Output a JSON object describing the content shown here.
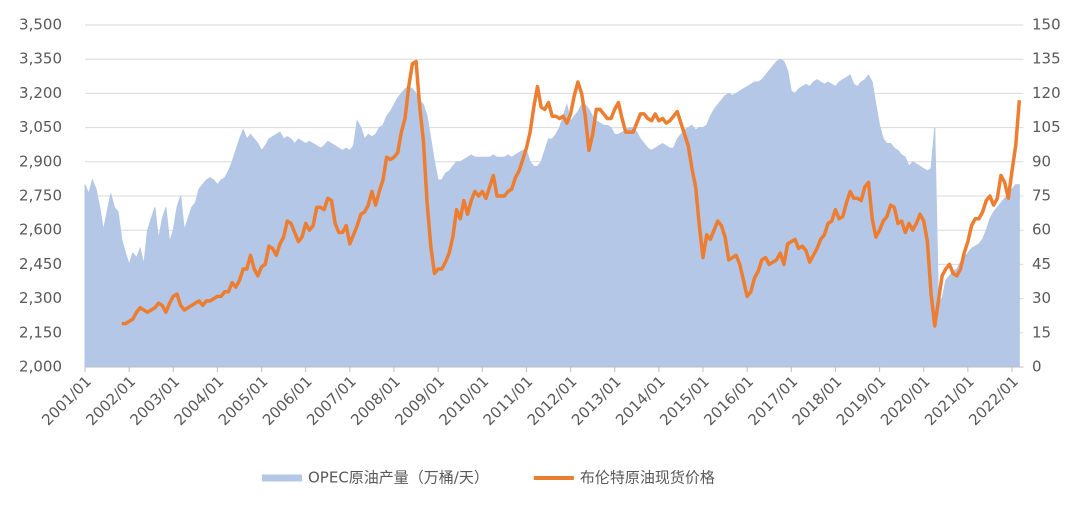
{
  "chart_data": {
    "type": "area",
    "x": [
      "2001/01",
      "2001/02",
      "2001/03",
      "2001/04",
      "2001/05",
      "2001/06",
      "2001/07",
      "2001/08",
      "2001/09",
      "2001/10",
      "2001/11",
      "2001/12",
      "2002/01",
      "2002/02",
      "2002/03",
      "2002/04",
      "2002/05",
      "2002/06",
      "2002/07",
      "2002/08",
      "2002/09",
      "2002/10",
      "2002/11",
      "2002/12",
      "2003/01",
      "2003/02",
      "2003/03",
      "2003/04",
      "2003/05",
      "2003/06",
      "2003/07",
      "2003/08",
      "2003/09",
      "2003/10",
      "2003/11",
      "2003/12",
      "2004/01",
      "2004/02",
      "2004/03",
      "2004/04",
      "2004/05",
      "2004/06",
      "2004/07",
      "2004/08",
      "2004/09",
      "2004/10",
      "2004/11",
      "2004/12",
      "2005/01",
      "2005/02",
      "2005/03",
      "2005/04",
      "2005/05",
      "2005/06",
      "2005/07",
      "2005/08",
      "2005/09",
      "2005/10",
      "2005/11",
      "2005/12",
      "2006/01",
      "2006/02",
      "2006/03",
      "2006/04",
      "2006/05",
      "2006/06",
      "2006/07",
      "2006/08",
      "2006/09",
      "2006/10",
      "2006/11",
      "2006/12",
      "2007/01",
      "2007/02",
      "2007/03",
      "2007/04",
      "2007/05",
      "2007/06",
      "2007/07",
      "2007/08",
      "2007/09",
      "2007/10",
      "2007/11",
      "2007/12",
      "2008/01",
      "2008/02",
      "2008/03",
      "2008/04",
      "2008/05",
      "2008/06",
      "2008/07",
      "2008/08",
      "2008/09",
      "2008/10",
      "2008/11",
      "2008/12",
      "2009/01",
      "2009/02",
      "2009/03",
      "2009/04",
      "2009/05",
      "2009/06",
      "2009/07",
      "2009/08",
      "2009/09",
      "2009/10",
      "2009/11",
      "2009/12",
      "2010/01",
      "2010/02",
      "2010/03",
      "2010/04",
      "2010/05",
      "2010/06",
      "2010/07",
      "2010/08",
      "2010/09",
      "2010/10",
      "2010/11",
      "2010/12",
      "2011/01",
      "2011/02",
      "2011/03",
      "2011/04",
      "2011/05",
      "2011/06",
      "2011/07",
      "2011/08",
      "2011/09",
      "2011/10",
      "2011/11",
      "2011/12",
      "2012/01",
      "2012/02",
      "2012/03",
      "2012/04",
      "2012/05",
      "2012/06",
      "2012/07",
      "2012/08",
      "2012/09",
      "2012/10",
      "2012/11",
      "2012/12",
      "2013/01",
      "2013/02",
      "2013/03",
      "2013/04",
      "2013/05",
      "2013/06",
      "2013/07",
      "2013/08",
      "2013/09",
      "2013/10",
      "2013/11",
      "2013/12",
      "2014/01",
      "2014/02",
      "2014/03",
      "2014/04",
      "2014/05",
      "2014/06",
      "2014/07",
      "2014/08",
      "2014/09",
      "2014/10",
      "2014/11",
      "2014/12",
      "2015/01",
      "2015/02",
      "2015/03",
      "2015/04",
      "2015/05",
      "2015/06",
      "2015/07",
      "2015/08",
      "2015/09",
      "2015/10",
      "2015/11",
      "2015/12",
      "2016/01",
      "2016/02",
      "2016/03",
      "2016/04",
      "2016/05",
      "2016/06",
      "2016/07",
      "2016/08",
      "2016/09",
      "2016/10",
      "2016/11",
      "2016/12",
      "2017/01",
      "2017/02",
      "2017/03",
      "2017/04",
      "2017/05",
      "2017/06",
      "2017/07",
      "2017/08",
      "2017/09",
      "2017/10",
      "2017/11",
      "2017/12",
      "2018/01",
      "2018/02",
      "2018/03",
      "2018/04",
      "2018/05",
      "2018/06",
      "2018/07",
      "2018/08",
      "2018/09",
      "2018/10",
      "2018/11",
      "2018/12",
      "2019/01",
      "2019/02",
      "2019/03",
      "2019/04",
      "2019/05",
      "2019/06",
      "2019/07",
      "2019/08",
      "2019/09",
      "2019/10",
      "2019/11",
      "2019/12",
      "2020/01",
      "2020/02",
      "2020/03",
      "2020/04",
      "2020/05",
      "2020/06",
      "2020/07",
      "2020/08",
      "2020/09",
      "2020/10",
      "2020/11",
      "2020/12",
      "2021/01",
      "2021/02",
      "2021/03",
      "2021/04",
      "2021/05",
      "2021/06",
      "2021/07",
      "2021/08",
      "2021/09",
      "2021/10",
      "2021/11",
      "2021/12",
      "2022/01",
      "2022/02",
      "2022/03"
    ],
    "xticks": [
      "2001/01",
      "2002/01",
      "2003/01",
      "2004/01",
      "2005/01",
      "2006/01",
      "2007/01",
      "2008/01",
      "2009/01",
      "2010/01",
      "2011/01",
      "2012/01",
      "2013/01",
      "2014/01",
      "2015/01",
      "2016/01",
      "2017/01",
      "2018/01",
      "2019/01",
      "2020/01",
      "2021/01",
      "2022/01"
    ],
    "series": [
      {
        "name": "OPEC原油产量（万桶/天）",
        "type": "area",
        "color": "#b4c7e7",
        "values": [
          2800,
          2760,
          2820,
          2780,
          2700,
          2600,
          2680,
          2760,
          2700,
          2680,
          2560,
          2500,
          2450,
          2500,
          2480,
          2520,
          2450,
          2600,
          2650,
          2700,
          2560,
          2650,
          2700,
          2550,
          2600,
          2700,
          2750,
          2600,
          2650,
          2700,
          2720,
          2780,
          2800,
          2820,
          2830,
          2820,
          2800,
          2820,
          2830,
          2860,
          2900,
          2950,
          3000,
          3040,
          3000,
          3020,
          3000,
          2980,
          2950,
          2970,
          3000,
          3010,
          3020,
          3030,
          3000,
          3010,
          3000,
          2980,
          3000,
          2990,
          2980,
          2990,
          2980,
          2970,
          2960,
          2970,
          2990,
          2980,
          2970,
          2960,
          2950,
          2960,
          2950,
          2970,
          3080,
          3050,
          3000,
          3020,
          3010,
          3020,
          3050,
          3060,
          3100,
          3120,
          3150,
          3180,
          3200,
          3220,
          3230,
          3220,
          3200,
          3170,
          3150,
          3100,
          3000,
          2900,
          2820,
          2820,
          2850,
          2860,
          2880,
          2900,
          2900,
          2910,
          2920,
          2930,
          2920,
          2920,
          2920,
          2920,
          2920,
          2930,
          2920,
          2920,
          2920,
          2930,
          2920,
          2930,
          2940,
          2950,
          2950,
          2900,
          2880,
          2880,
          2900,
          2950,
          3000,
          3000,
          3020,
          3050,
          3100,
          3150,
          3080,
          3100,
          3120,
          3150,
          3150,
          3130,
          3100,
          3080,
          3070,
          3060,
          3060,
          3050,
          3020,
          3020,
          3030,
          3040,
          3050,
          3050,
          3030,
          3000,
          2980,
          2960,
          2950,
          2960,
          2970,
          2980,
          2970,
          2960,
          2960,
          3000,
          3020,
          3040,
          3050,
          3060,
          3040,
          3050,
          3050,
          3060,
          3100,
          3130,
          3150,
          3170,
          3190,
          3200,
          3190,
          3200,
          3210,
          3220,
          3230,
          3240,
          3250,
          3250,
          3260,
          3280,
          3300,
          3320,
          3340,
          3350,
          3340,
          3300,
          3210,
          3200,
          3220,
          3230,
          3240,
          3230,
          3250,
          3260,
          3250,
          3240,
          3250,
          3240,
          3230,
          3250,
          3260,
          3270,
          3280,
          3240,
          3230,
          3250,
          3260,
          3280,
          3250,
          3150,
          3060,
          3000,
          2980,
          2980,
          2960,
          2950,
          2930,
          2920,
          2880,
          2900,
          2890,
          2880,
          2870,
          2860,
          2870,
          3050,
          2280,
          2300,
          2380,
          2400,
          2420,
          2430,
          2460,
          2480,
          2500,
          2520,
          2530,
          2540,
          2560,
          2600,
          2650,
          2680,
          2700,
          2720,
          2740,
          2760,
          2780,
          2800,
          2800
        ]
      },
      {
        "name": "布伦特原油现货价格",
        "type": "line",
        "axis": "y2",
        "color": "#ed7d31",
        "values": [
          null,
          null,
          null,
          null,
          null,
          null,
          null,
          null,
          null,
          null,
          19,
          19,
          20,
          21,
          24,
          26,
          25,
          24,
          25,
          26,
          28,
          27,
          24,
          28,
          31,
          32,
          27,
          25,
          26,
          27,
          28,
          29,
          27,
          29,
          29,
          30,
          31,
          31,
          33,
          33,
          37,
          35,
          38,
          43,
          43,
          49,
          43,
          40,
          44,
          45,
          53,
          52,
          49,
          54,
          57,
          64,
          63,
          59,
          55,
          57,
          63,
          60,
          62,
          70,
          70,
          69,
          74,
          73,
          63,
          59,
          59,
          62,
          54,
          58,
          62,
          67,
          68,
          71,
          77,
          71,
          77,
          82,
          92,
          91,
          92,
          94,
          103,
          109,
          123,
          133,
          134,
          114,
          99,
          72,
          53,
          41,
          43,
          43,
          46,
          50,
          57,
          69,
          65,
          73,
          67,
          73,
          77,
          75,
          77,
          74,
          79,
          84,
          75,
          75,
          75,
          77,
          78,
          83,
          86,
          91,
          96,
          103,
          114,
          123,
          114,
          113,
          116,
          110,
          110,
          109,
          110,
          107,
          111,
          119,
          125,
          120,
          110,
          95,
          102,
          113,
          113,
          111,
          109,
          109,
          113,
          116,
          109,
          103,
          103,
          103,
          107,
          111,
          111,
          109,
          108,
          111,
          108,
          109,
          107,
          108,
          110,
          112,
          107,
          102,
          97,
          87,
          79,
          62,
          48,
          58,
          56,
          60,
          64,
          62,
          57,
          47,
          48,
          49,
          45,
          38,
          31,
          33,
          39,
          42,
          47,
          48,
          45,
          46,
          47,
          50,
          45,
          54,
          55,
          56,
          52,
          53,
          51,
          46,
          49,
          52,
          56,
          58,
          63,
          64,
          69,
          65,
          66,
          72,
          77,
          74,
          74,
          73,
          79,
          81,
          65,
          57,
          60,
          64,
          66,
          71,
          70,
          63,
          64,
          59,
          63,
          60,
          63,
          67,
          64,
          55,
          32,
          18,
          29,
          40,
          43,
          45,
          41,
          40,
          43,
          50,
          55,
          62,
          65,
          65,
          68,
          73,
          75,
          71,
          74,
          84,
          81,
          74,
          86,
          97,
          117
        ]
      }
    ],
    "ylim": [
      2000,
      3500
    ],
    "yticks": [
      {
        "value": 2000,
        "label": "2,000"
      },
      {
        "value": 2150,
        "label": "2,150"
      },
      {
        "value": 2300,
        "label": "2,300"
      },
      {
        "value": 2450,
        "label": "2,450"
      },
      {
        "value": 2600,
        "label": "2,600"
      },
      {
        "value": 2750,
        "label": "2,750"
      },
      {
        "value": 2900,
        "label": "2,900"
      },
      {
        "value": 3050,
        "label": "3,050"
      },
      {
        "value": 3200,
        "label": "3,200"
      },
      {
        "value": 3350,
        "label": "3,350"
      },
      {
        "value": 3500,
        "label": "3,500"
      }
    ],
    "y2lim": [
      0,
      150
    ],
    "y2ticks": [
      0,
      15,
      30,
      45,
      60,
      75,
      90,
      105,
      120,
      135,
      150
    ],
    "legend": "bottom"
  }
}
